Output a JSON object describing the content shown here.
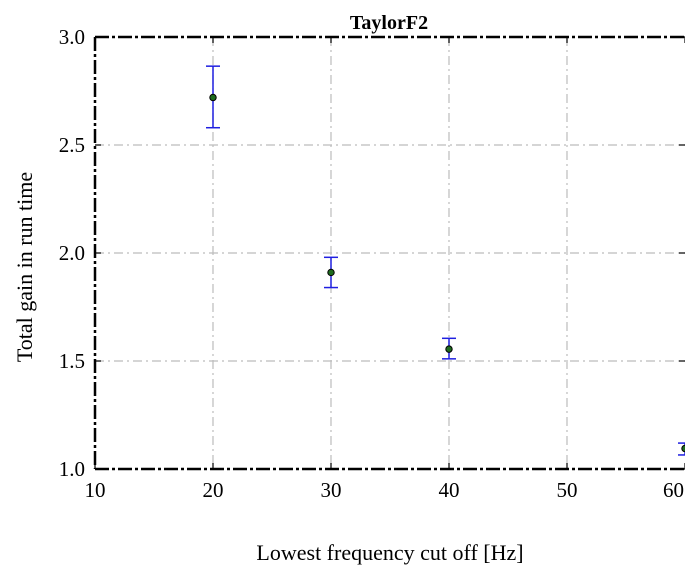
{
  "chart_data": {
    "type": "scatter",
    "title": "TaylorF2",
    "xlabel": "Lowest frequency cut off [Hz]",
    "ylabel": "Total gain in run time",
    "xlim": [
      10,
      60
    ],
    "ylim": [
      1.0,
      3.0
    ],
    "x_ticks": [
      "10",
      "20",
      "30",
      "40",
      "50",
      "60"
    ],
    "y_ticks": [
      "1.0",
      "1.5",
      "2.0",
      "2.5",
      "3.0"
    ],
    "grid": true,
    "grid_style": "dash-dot",
    "points": [
      {
        "x": 20,
        "y": 2.72,
        "y_low": 2.58,
        "y_high": 2.865
      },
      {
        "x": 30,
        "y": 1.91,
        "y_low": 1.84,
        "y_high": 1.98
      },
      {
        "x": 40,
        "y": 1.555,
        "y_low": 1.51,
        "y_high": 1.605
      },
      {
        "x": 60,
        "y": 1.095,
        "y_low": 1.065,
        "y_high": 1.12
      }
    ],
    "colors": {
      "marker_fill": "#1e6b1e",
      "marker_edge": "#000000",
      "errorbar": "#1f1fe0",
      "grid": "#bcbcbc",
      "axes": "#000000"
    }
  }
}
